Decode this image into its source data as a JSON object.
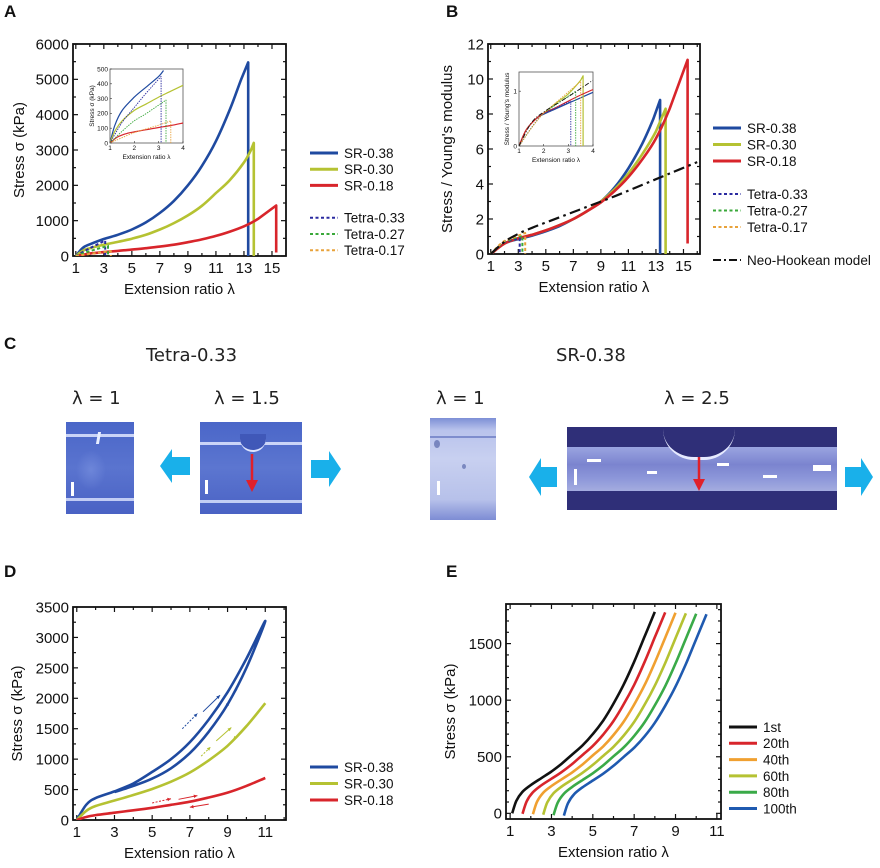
{
  "panels": {
    "A": {
      "letter": "A"
    },
    "B": {
      "letter": "B"
    },
    "C": {
      "letter": "C"
    },
    "D": {
      "letter": "D"
    },
    "E": {
      "letter": "E"
    }
  },
  "colors": {
    "sr038": "#1f4aa0",
    "sr030": "#b5c232",
    "sr018": "#d8252b",
    "tetra033": "#2a2aa0",
    "tetra027": "#3aa83a",
    "tetra017": "#e8a23a",
    "neo": "#111111",
    "c1st": "#111111",
    "c20th": "#d8252b",
    "c40th": "#f0a030",
    "c60th": "#b5c232",
    "c80th": "#3aaa48",
    "c100th": "#1f5ab0",
    "photo_arrow": "#19b0ea",
    "crack_arrow": "#e0202a"
  },
  "panel_C": {
    "groups": [
      {
        "title": "Tetra-0.33",
        "frames": [
          {
            "label": "λ = 1"
          },
          {
            "label": "λ = 1.5"
          }
        ]
      },
      {
        "title": "SR-0.38",
        "frames": [
          {
            "label": "λ = 1"
          },
          {
            "label": "λ = 2.5"
          }
        ]
      }
    ]
  },
  "chart_data": [
    {
      "id": "A",
      "type": "line",
      "title": "",
      "xlabel": "Extension ratio λ",
      "ylabel": "Stress σ (kPa)",
      "xlim": [
        0.8,
        16.0
      ],
      "ylim": [
        0,
        6000
      ],
      "xticks": [
        1,
        3,
        5,
        7,
        9,
        11,
        13,
        15
      ],
      "yticks": [
        0,
        1000,
        2000,
        3000,
        4000,
        5000,
        6000
      ],
      "legend_position": "right",
      "series": [
        {
          "name": "SR-0.38",
          "style": "solid",
          "color_key": "sr038",
          "x": [
            1,
            1.5,
            2,
            3,
            4,
            5,
            6,
            7,
            8,
            9,
            10,
            11,
            12,
            12.8,
            13.3,
            13.3
          ],
          "y": [
            0,
            230,
            330,
            480,
            600,
            750,
            950,
            1220,
            1560,
            2000,
            2550,
            3250,
            4150,
            5000,
            5480,
            0
          ]
        },
        {
          "name": "SR-0.30",
          "style": "solid",
          "color_key": "sr030",
          "x": [
            1,
            1.5,
            2,
            3,
            4,
            5,
            6,
            7,
            8,
            9,
            10,
            11,
            12,
            13,
            13.5,
            13.7,
            13.7
          ],
          "y": [
            0,
            150,
            220,
            320,
            400,
            490,
            600,
            750,
            930,
            1150,
            1420,
            1780,
            2150,
            2650,
            3000,
            3200,
            0
          ]
        },
        {
          "name": "SR-0.18",
          "style": "solid",
          "color_key": "sr018",
          "x": [
            1,
            2,
            3,
            4,
            5,
            6,
            7,
            8,
            9,
            10,
            11,
            12,
            13,
            14,
            15.3,
            15.3
          ],
          "y": [
            0,
            70,
            110,
            145,
            180,
            220,
            265,
            320,
            390,
            470,
            570,
            690,
            840,
            1050,
            1430,
            100
          ]
        },
        {
          "name": "Tetra-0.33",
          "style": "dashed",
          "color_key": "tetra033",
          "x": [
            1,
            2,
            3.1,
            3.1
          ],
          "y": [
            0,
            220,
            440,
            0
          ]
        },
        {
          "name": "Tetra-0.27",
          "style": "dashed",
          "color_key": "tetra027",
          "x": [
            1,
            2,
            3.3,
            3.3
          ],
          "y": [
            0,
            140,
            290,
            0
          ]
        },
        {
          "name": "Tetra-0.17",
          "style": "dashed",
          "color_key": "tetra017",
          "x": [
            1,
            2,
            3.5,
            3.5
          ],
          "y": [
            0,
            60,
            140,
            0
          ]
        }
      ],
      "inset": {
        "xlabel": "Extension ratio λ",
        "ylabel": "Stress σ (kPa)",
        "xlim": [
          1,
          4
        ],
        "ylim": [
          0,
          500
        ],
        "xticks": [
          1,
          2,
          3,
          4
        ],
        "yticks": [
          0,
          100,
          200,
          300,
          400,
          500
        ],
        "series": [
          {
            "name": "SR-0.38",
            "style": "solid",
            "color_key": "sr038",
            "x": [
              1,
              1.2,
              1.5,
              2,
              2.5,
              3,
              3.2
            ],
            "y": [
              0,
              120,
              220,
              310,
              380,
              450,
              490
            ]
          },
          {
            "name": "SR-0.30",
            "style": "solid",
            "color_key": "sr030",
            "x": [
              1,
              1.2,
              1.5,
              2,
              2.5,
              3,
              3.5,
              4
            ],
            "y": [
              0,
              80,
              150,
              220,
              265,
              310,
              350,
              390
            ]
          },
          {
            "name": "SR-0.18",
            "style": "solid",
            "color_key": "sr018",
            "x": [
              1,
              1.3,
              1.7,
              2,
              2.5,
              3,
              3.5,
              4
            ],
            "y": [
              0,
              40,
              65,
              75,
              90,
              105,
              118,
              135
            ]
          },
          {
            "name": "Tetra-0.33",
            "style": "dashed",
            "color_key": "tetra033",
            "x": [
              1,
              1.5,
              2,
              2.5,
              3.1,
              3.1
            ],
            "y": [
              0,
              140,
              240,
              340,
              450,
              0
            ]
          },
          {
            "name": "Tetra-0.27",
            "style": "dashed",
            "color_key": "tetra027",
            "x": [
              1,
              1.5,
              2,
              2.5,
              3.3,
              3.3
            ],
            "y": [
              0,
              80,
              150,
              200,
              290,
              0
            ]
          },
          {
            "name": "Tetra-0.17",
            "style": "dashed",
            "color_key": "tetra017",
            "x": [
              1,
              2,
              3,
              3.5,
              3.5
            ],
            "y": [
              0,
              70,
              120,
              150,
              0
            ]
          }
        ]
      }
    },
    {
      "id": "B",
      "type": "line",
      "title": "",
      "xlabel": "Extension ratio λ",
      "ylabel": "Stress / Young's modulus",
      "xlim": [
        0.8,
        16.2
      ],
      "ylim": [
        0,
        12
      ],
      "xticks": [
        1,
        3,
        5,
        7,
        9,
        11,
        13,
        15
      ],
      "yticks": [
        0,
        2,
        4,
        6,
        8,
        10,
        12
      ],
      "legend_position": "right",
      "series": [
        {
          "name": "SR-0.38",
          "style": "solid",
          "color_key": "sr038",
          "x": [
            1,
            2,
            3,
            4,
            5,
            6,
            7,
            8,
            9,
            10,
            11,
            12,
            12.8,
            13.3,
            13.3
          ],
          "y": [
            0,
            0.6,
            0.85,
            1.05,
            1.3,
            1.6,
            2.0,
            2.45,
            3.0,
            3.8,
            4.9,
            6.3,
            7.7,
            8.8,
            0
          ]
        },
        {
          "name": "SR-0.30",
          "style": "solid",
          "color_key": "sr030",
          "x": [
            1,
            2,
            3,
            4,
            5,
            6,
            7,
            8,
            9,
            10,
            11,
            12,
            13,
            13.7,
            13.7
          ],
          "y": [
            0,
            0.6,
            0.9,
            1.1,
            1.35,
            1.65,
            2.0,
            2.45,
            3.0,
            3.7,
            4.6,
            5.7,
            7.0,
            8.3,
            0
          ]
        },
        {
          "name": "SR-0.18",
          "style": "solid",
          "color_key": "sr018",
          "x": [
            1,
            2,
            3,
            4,
            5,
            6,
            7,
            8,
            9,
            10,
            11,
            12,
            13,
            14,
            15.3,
            15.3
          ],
          "y": [
            0,
            0.6,
            0.9,
            1.1,
            1.35,
            1.65,
            2.0,
            2.45,
            2.95,
            3.6,
            4.4,
            5.4,
            6.6,
            8.3,
            11.1,
            0.6
          ]
        },
        {
          "name": "Tetra-0.33",
          "style": "dashed",
          "color_key": "tetra033",
          "x": [
            1,
            2,
            3.1,
            3.1
          ],
          "y": [
            0,
            0.7,
            0.9,
            0
          ]
        },
        {
          "name": "Tetra-0.27",
          "style": "dashed",
          "color_key": "tetra027",
          "x": [
            1,
            2,
            3.3,
            3.3
          ],
          "y": [
            0,
            0.72,
            1.05,
            0
          ]
        },
        {
          "name": "Tetra-0.17",
          "style": "dashed",
          "color_key": "tetra017",
          "x": [
            1,
            2,
            3.5,
            3.5
          ],
          "y": [
            0,
            0.75,
            1.2,
            0
          ]
        },
        {
          "name": "Neo-Hookean model",
          "style": "dashdot",
          "color_key": "neo",
          "x": [
            1,
            2,
            3,
            4,
            6,
            8,
            10,
            12,
            14,
            16
          ],
          "y": [
            0,
            0.7,
            1.15,
            1.5,
            2.1,
            2.7,
            3.3,
            3.95,
            4.6,
            5.25
          ]
        }
      ],
      "inset": {
        "xlabel": "Extension ratio λ",
        "ylabel": "Stress / Young's modulus",
        "xlim": [
          1,
          4
        ],
        "ylim": [
          0,
          1.35
        ],
        "xticks": [
          1,
          2,
          3,
          4
        ],
        "yticks": [
          0,
          1
        ],
        "series": [
          {
            "name": "SR-0.38",
            "style": "solid",
            "color_key": "sr038",
            "x": [
              1,
              1.3,
              1.7,
              2,
              2.5,
              3,
              3.5,
              4
            ],
            "y": [
              0,
              0.3,
              0.5,
              0.58,
              0.68,
              0.78,
              0.88,
              0.98
            ]
          },
          {
            "name": "SR-0.30",
            "style": "solid",
            "color_key": "sr030",
            "x": [
              1,
              1.3,
              1.7,
              2,
              2.5,
              3,
              3.5,
              3.6,
              3.6
            ],
            "y": [
              0,
              0.3,
              0.5,
              0.6,
              0.78,
              0.95,
              1.2,
              1.28,
              0
            ]
          },
          {
            "name": "SR-0.18",
            "style": "solid",
            "color_key": "sr018",
            "x": [
              1,
              1.3,
              1.7,
              2,
              2.5,
              3,
              3.5,
              4
            ],
            "y": [
              0,
              0.3,
              0.5,
              0.6,
              0.7,
              0.82,
              0.93,
              1.03
            ]
          },
          {
            "name": "Tetra-0.33",
            "style": "dashed",
            "color_key": "tetra033",
            "x": [
              1,
              2,
              3.1,
              3.1
            ],
            "y": [
              0,
              0.6,
              0.82,
              0
            ]
          },
          {
            "name": "Tetra-0.27",
            "style": "dashed",
            "color_key": "tetra027",
            "x": [
              1,
              2,
              3.3,
              3.3
            ],
            "y": [
              0,
              0.6,
              1.0,
              0
            ]
          },
          {
            "name": "Tetra-0.17",
            "style": "dashed",
            "color_key": "tetra017",
            "x": [
              1,
              2,
              3.5,
              3.5
            ],
            "y": [
              0,
              0.6,
              1.18,
              0
            ]
          },
          {
            "name": "Neo-Hookean model",
            "style": "dashdot",
            "color_key": "neo",
            "x": [
              1,
              1.5,
              2,
              3,
              4
            ],
            "y": [
              0,
              0.42,
              0.62,
              0.9,
              1.2
            ]
          }
        ]
      }
    },
    {
      "id": "D",
      "type": "line",
      "title": "",
      "xlabel": "Extension ratio λ",
      "ylabel": "Stress σ (kPa)",
      "xlim": [
        0.8,
        12.1
      ],
      "ylim": [
        0,
        3500
      ],
      "xticks": [
        1,
        3,
        5,
        7,
        9,
        11
      ],
      "yticks": [
        0,
        500,
        1000,
        1500,
        2000,
        2500,
        3000,
        3500
      ],
      "legend_position": "right",
      "series": [
        {
          "name": "SR-0.38",
          "style": "solid",
          "color_key": "sr038",
          "x": [
            1,
            1.5,
            2,
            3,
            4,
            5,
            6,
            7,
            8,
            9,
            10,
            11,
            10,
            9,
            8,
            7,
            6,
            5,
            4,
            3
          ],
          "y": [
            0,
            250,
            360,
            470,
            600,
            790,
            1000,
            1280,
            1650,
            2100,
            2650,
            3270,
            2500,
            1900,
            1450,
            1100,
            850,
            680,
            560,
            460
          ]
        },
        {
          "name": "SR-0.30",
          "style": "solid",
          "color_key": "sr030",
          "x": [
            1,
            1.5,
            2,
            3,
            4,
            5,
            6,
            7,
            8,
            9,
            10,
            11
          ],
          "y": [
            0,
            150,
            230,
            320,
            410,
            510,
            630,
            780,
            980,
            1220,
            1540,
            1920
          ]
        },
        {
          "name": "SR-0.18",
          "style": "solid",
          "color_key": "sr018",
          "x": [
            1,
            1.5,
            2,
            3,
            4,
            5,
            6,
            7,
            8,
            9,
            10,
            11
          ],
          "y": [
            0,
            50,
            80,
            120,
            160,
            200,
            250,
            300,
            370,
            450,
            560,
            690
          ]
        }
      ]
    },
    {
      "id": "E",
      "type": "line",
      "title": "",
      "xlabel": "Extension ratio λ",
      "ylabel": "Stress σ (kPa)",
      "xlim": [
        0.8,
        11.2
      ],
      "ylim": [
        -50,
        1850
      ],
      "xticks": [
        1,
        3,
        5,
        7,
        9,
        11
      ],
      "yticks": [
        0,
        500,
        1000,
        1500
      ],
      "legend_position": "right",
      "series": [
        {
          "name": "1st",
          "color_key": "c1st",
          "offset": 0.0,
          "end": 8.0
        },
        {
          "name": "20th",
          "color_key": "c20th",
          "offset": 0.5,
          "end": 8.5
        },
        {
          "name": "40th",
          "color_key": "c40th",
          "offset": 1.0,
          "end": 9.0
        },
        {
          "name": "60th",
          "color_key": "c60th",
          "offset": 1.5,
          "end": 9.5
        },
        {
          "name": "80th",
          "color_key": "c80th",
          "offset": 2.0,
          "end": 10.0
        },
        {
          "name": "100th",
          "color_key": "c100th",
          "offset": 2.5,
          "end": 10.5
        }
      ],
      "base_curve": {
        "x": [
          1.1,
          1.3,
          1.6,
          2,
          2.5,
          3,
          3.5,
          4,
          4.5,
          5,
          5.5,
          6,
          6.5,
          7,
          7.5,
          8.0
        ],
        "y": [
          0,
          110,
          190,
          250,
          310,
          370,
          440,
          520,
          600,
          700,
          820,
          970,
          1140,
          1340,
          1560,
          1780
        ]
      }
    }
  ]
}
